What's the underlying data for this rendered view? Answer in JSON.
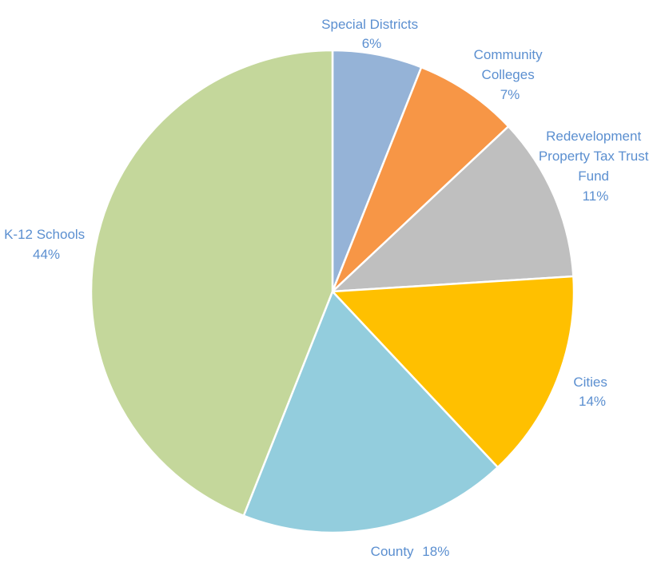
{
  "chart_data": {
    "type": "pie",
    "title": "",
    "start_angle_deg": 0,
    "direction": "clockwise",
    "legend": "none",
    "label_color": "#5b8fd0",
    "slices": [
      {
        "label": "Special Districts",
        "value": 6,
        "value_text": "6%",
        "color": "#95b3d7"
      },
      {
        "label": "Community Colleges",
        "value": 7,
        "value_text": "7%",
        "color": "#f79646"
      },
      {
        "label": "Redevelopment Property Tax Trust Fund",
        "value": 11,
        "value_text": "11%",
        "color": "#bfbfbf"
      },
      {
        "label": "Cities",
        "value": 14,
        "value_text": "14%",
        "color": "#ffc000"
      },
      {
        "label": "County",
        "value": 18,
        "value_text": "18%",
        "color": "#93cddd"
      },
      {
        "label": "K-12 Schools",
        "value": 44,
        "value_text": "44%",
        "color": "#c4d79b"
      }
    ]
  }
}
